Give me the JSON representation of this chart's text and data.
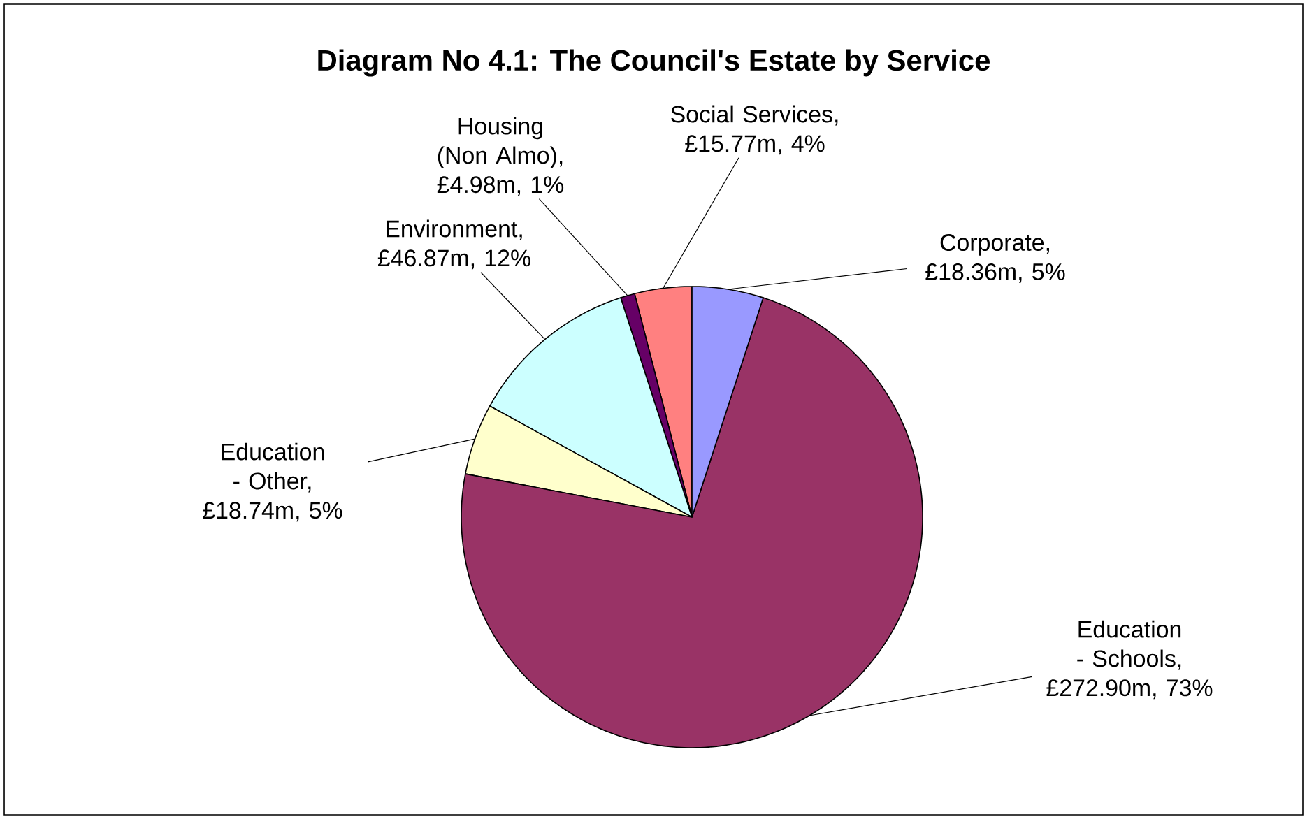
{
  "chart_data": {
    "type": "pie",
    "title": "Diagram No 4.1: The Council's Estate by Service",
    "categories": [
      "Social Services, £15.77m, 4%",
      "Housing (Non Almo), £4.98m, 1%",
      "Environment, £46.87m, 12%",
      "Education - Other, £18.74m, 5%",
      "Education - Schools, £272.90m, 73%",
      "Corporate, £18.36m, 5%"
    ],
    "values": [
      4,
      1,
      12,
      5,
      73,
      5
    ],
    "colors": [
      "#ff8080",
      "#660066",
      "#ccffff",
      "#ffffcc",
      "#993366",
      "#9999ff"
    ]
  }
}
